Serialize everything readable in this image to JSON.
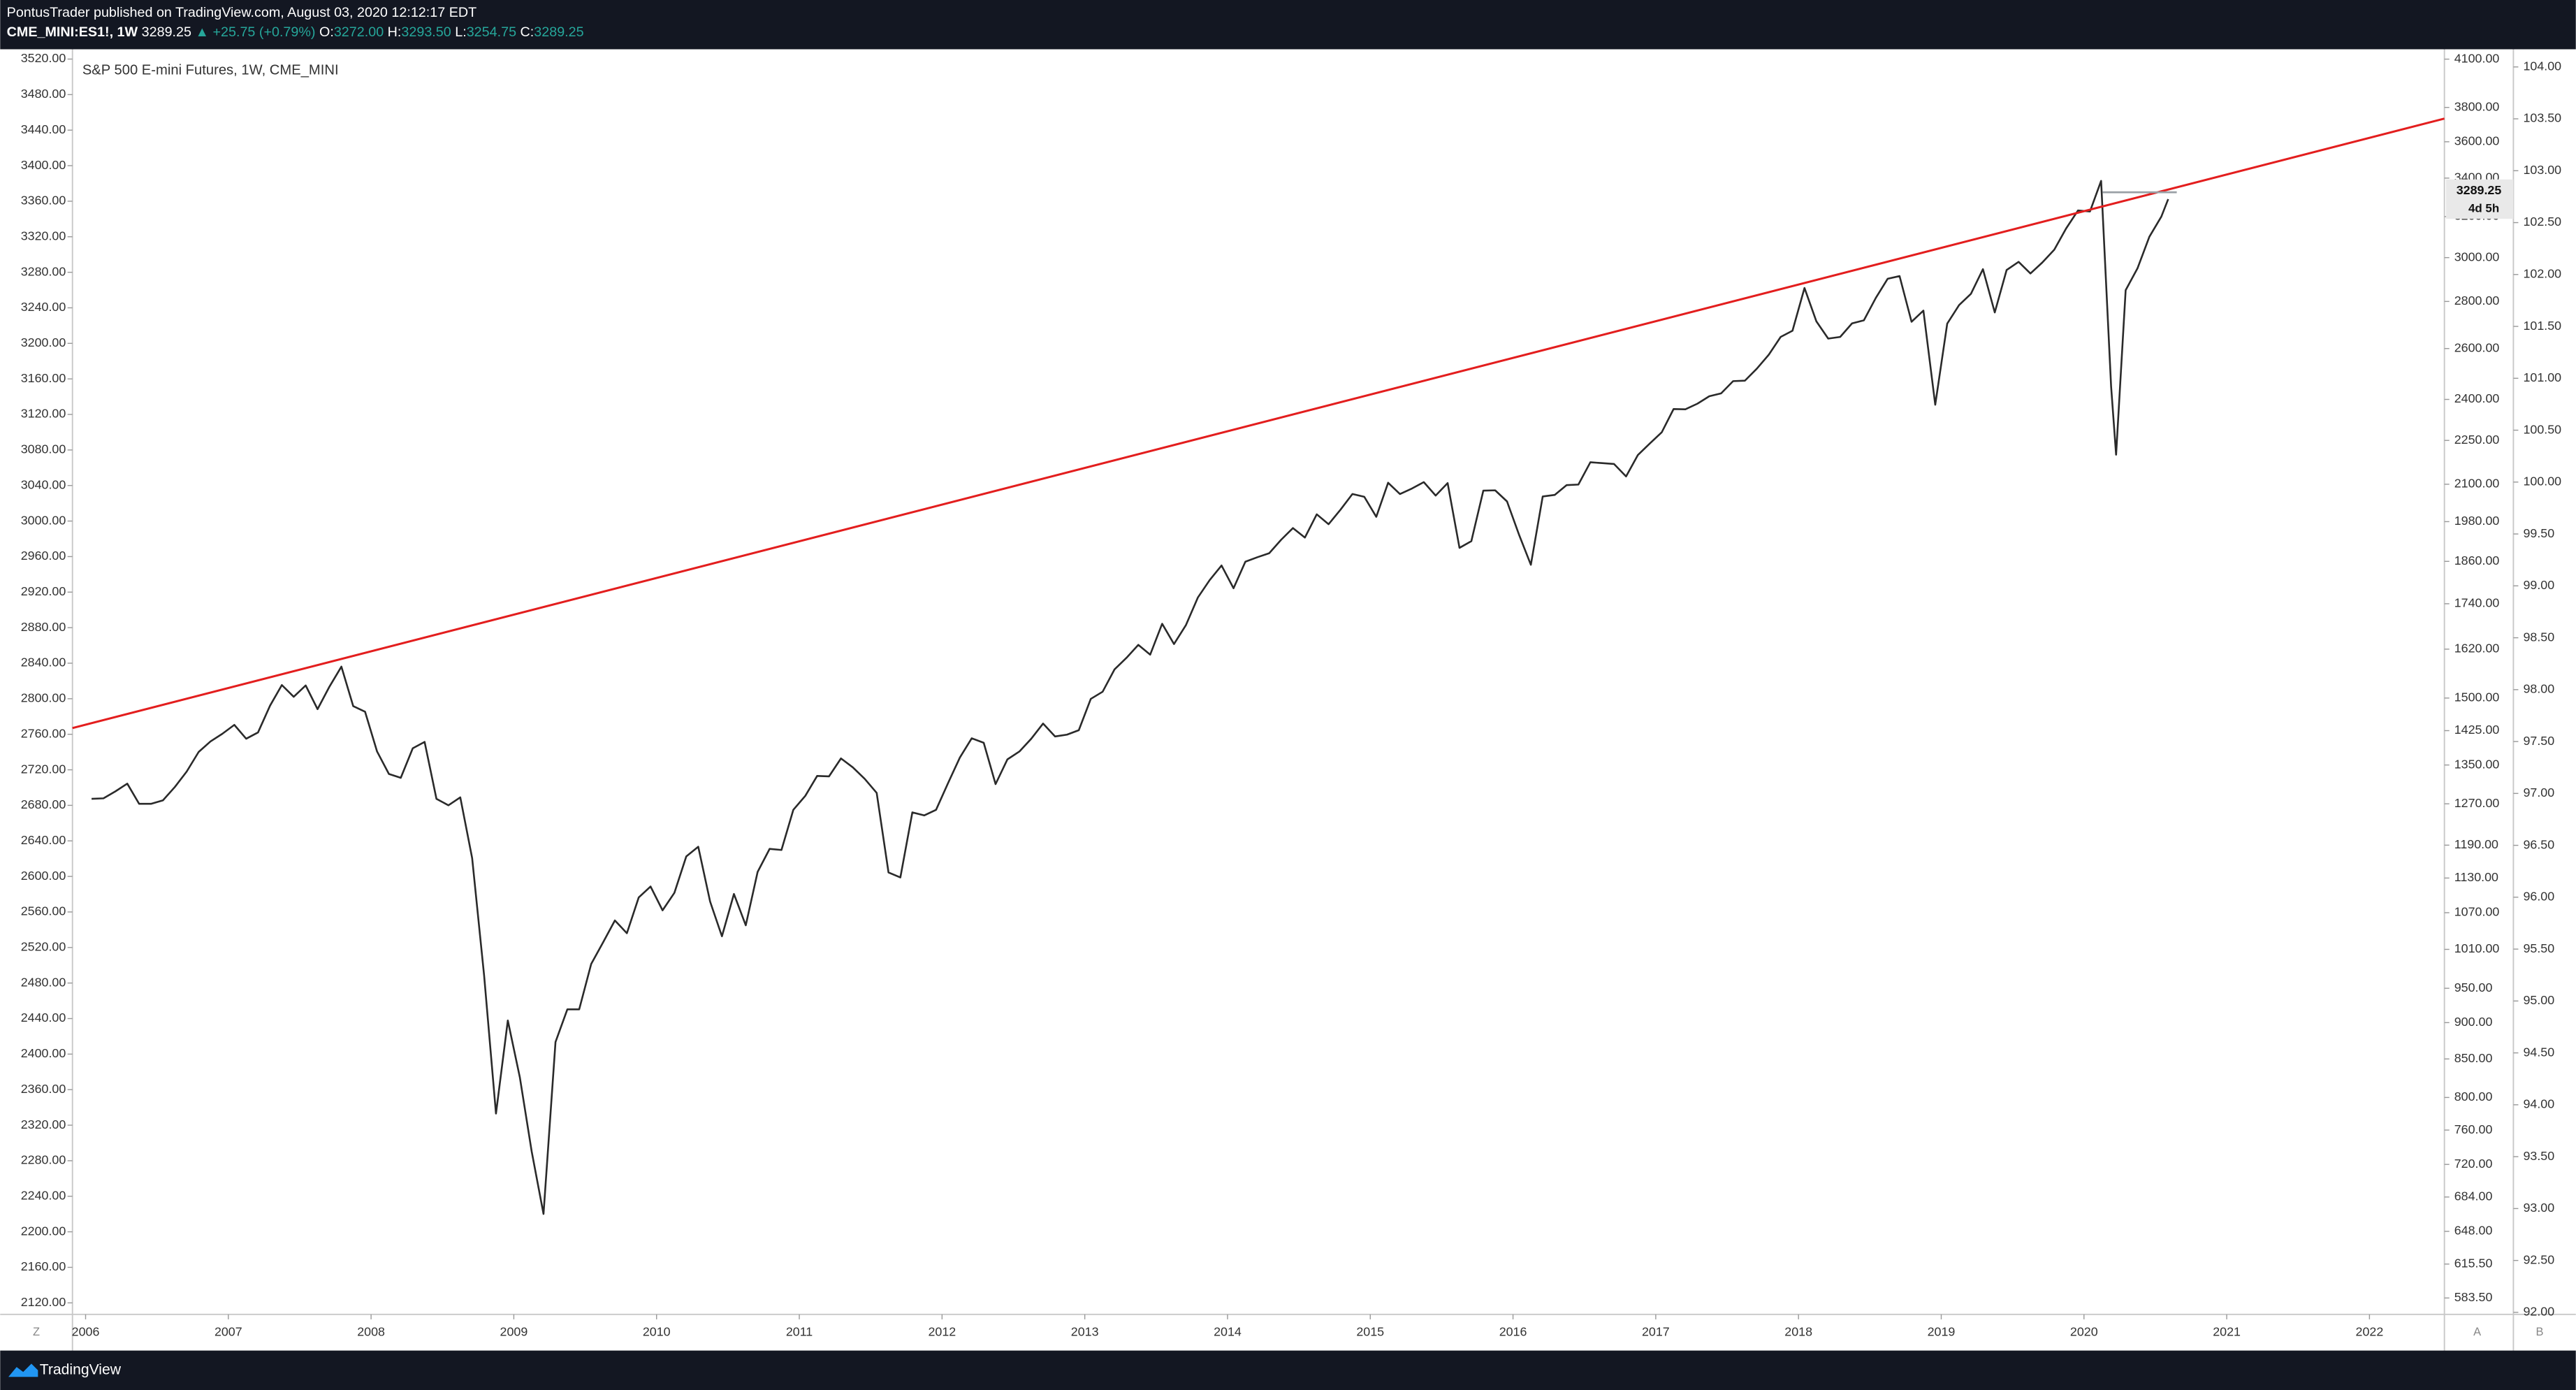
{
  "header": {
    "line1": "PontusTrader published on TradingView.com, August 03, 2020 12:12:17 EDT",
    "symbol": "CME_MINI:ES1!, 1W",
    "price": "3289.25",
    "change": "▲ +25.75 (+0.79%)",
    "o_label": "O:",
    "o": "3272.00",
    "h_label": "H:",
    "h": "3293.50",
    "l_label": "L:",
    "l": "3254.75",
    "c_label": "C:",
    "c": "3289.25"
  },
  "footer": {
    "brand": "TradingView"
  },
  "controls": {
    "left": "Z",
    "auto": "A",
    "log": "B"
  },
  "chart_data": {
    "type": "line",
    "title": "S&P 500 E-mini Futures, 1W, CME_MINI",
    "xlim": [
      2005.908,
      2022.525
    ],
    "xticks": [
      2006,
      2007,
      2008,
      2009,
      2010,
      2011,
      2012,
      2013,
      2014,
      2015,
      2016,
      2017,
      2018,
      2019,
      2020,
      2021,
      2022
    ],
    "ylim": [
      2107,
      3531
    ],
    "yticks": [
      {
        "value": 3520,
        "label": "3520.00"
      },
      {
        "value": 3480,
        "label": "3480.00"
      },
      {
        "value": 3440,
        "label": "3440.00"
      },
      {
        "value": 3400,
        "label": "3400.00"
      },
      {
        "value": 3360,
        "label": "3360.00"
      },
      {
        "value": 3320,
        "label": "3320.00"
      },
      {
        "value": 3280,
        "label": "3280.00"
      },
      {
        "value": 3240,
        "label": "3240.00"
      },
      {
        "value": 3200,
        "label": "3200.00"
      },
      {
        "value": 3160,
        "label": "3160.00"
      },
      {
        "value": 3120,
        "label": "3120.00"
      },
      {
        "value": 3080,
        "label": "3080.00"
      },
      {
        "value": 3040,
        "label": "3040.00"
      },
      {
        "value": 3000,
        "label": "3000.00"
      },
      {
        "value": 2960,
        "label": "2960.00"
      },
      {
        "value": 2920,
        "label": "2920.00"
      },
      {
        "value": 2880,
        "label": "2880.00"
      },
      {
        "value": 2840,
        "label": "2840.00"
      },
      {
        "value": 2800,
        "label": "2800.00"
      },
      {
        "value": 2760,
        "label": "2760.00"
      },
      {
        "value": 2720,
        "label": "2720.00"
      },
      {
        "value": 2680,
        "label": "2680.00"
      },
      {
        "value": 2640,
        "label": "2640.00"
      },
      {
        "value": 2600,
        "label": "2600.00"
      },
      {
        "value": 2560,
        "label": "2560.00"
      },
      {
        "value": 2520,
        "label": "2520.00"
      },
      {
        "value": 2480,
        "label": "2480.00"
      },
      {
        "value": 2440,
        "label": "2440.00"
      },
      {
        "value": 2400,
        "label": "2400.00"
      },
      {
        "value": 2360,
        "label": "2360.00"
      },
      {
        "value": 2320,
        "label": "2320.00"
      },
      {
        "value": 2280,
        "label": "2280.00"
      },
      {
        "value": 2240,
        "label": "2240.00"
      },
      {
        "value": 2200,
        "label": "2200.00"
      },
      {
        "value": 2160,
        "label": "2160.00"
      },
      {
        "value": 2120,
        "label": "2120.00"
      }
    ],
    "y2lim": [
      568.6,
      4164
    ],
    "y2log": true,
    "y2ticks": [
      {
        "value": 4100,
        "label": "4100.00"
      },
      {
        "value": 3800,
        "label": "3800.00"
      },
      {
        "value": 3600,
        "label": "3600.00"
      },
      {
        "value": 3400,
        "label": "3400.00"
      },
      {
        "value": 3200,
        "label": "3200.00"
      },
      {
        "value": 3000,
        "label": "3000.00"
      },
      {
        "value": 2800,
        "label": "2800.00"
      },
      {
        "value": 2600,
        "label": "2600.00"
      },
      {
        "value": 2400,
        "label": "2400.00"
      },
      {
        "value": 2250,
        "label": "2250.00"
      },
      {
        "value": 2100,
        "label": "2100.00"
      },
      {
        "value": 1980,
        "label": "1980.00"
      },
      {
        "value": 1860,
        "label": "1860.00"
      },
      {
        "value": 1740,
        "label": "1740.00"
      },
      {
        "value": 1620,
        "label": "1620.00"
      },
      {
        "value": 1500,
        "label": "1500.00"
      },
      {
        "value": 1425,
        "label": "1425.00"
      },
      {
        "value": 1350,
        "label": "1350.00"
      },
      {
        "value": 1270,
        "label": "1270.00"
      },
      {
        "value": 1190,
        "label": "1190.00"
      },
      {
        "value": 1130,
        "label": "1130.00"
      },
      {
        "value": 1070,
        "label": "1070.00"
      },
      {
        "value": 1010,
        "label": "1010.00"
      },
      {
        "value": 950,
        "label": "950.00"
      },
      {
        "value": 900,
        "label": "900.00"
      },
      {
        "value": 850,
        "label": "850.00"
      },
      {
        "value": 800,
        "label": "800.00"
      },
      {
        "value": 760,
        "label": "760.00"
      },
      {
        "value": 720,
        "label": "720.00"
      },
      {
        "value": 684,
        "label": "684.00"
      },
      {
        "value": 648,
        "label": "648.00"
      },
      {
        "value": 615.5,
        "label": "615.50"
      },
      {
        "value": 583.5,
        "label": "583.50"
      }
    ],
    "y3lim": [
      91.98,
      104.17
    ],
    "y3ticks": [
      {
        "value": 104,
        "label": "104.00"
      },
      {
        "value": 103.5,
        "label": "103.50"
      },
      {
        "value": 103,
        "label": "103.00"
      },
      {
        "value": 102.5,
        "label": "102.50"
      },
      {
        "value": 102,
        "label": "102.00"
      },
      {
        "value": 101.5,
        "label": "101.50"
      },
      {
        "value": 101,
        "label": "101.00"
      },
      {
        "value": 100.5,
        "label": "100.50"
      },
      {
        "value": 100,
        "label": "100.00"
      },
      {
        "value": 99.5,
        "label": "99.50"
      },
      {
        "value": 99,
        "label": "99.00"
      },
      {
        "value": 98.5,
        "label": "98.50"
      },
      {
        "value": 98,
        "label": "98.00"
      },
      {
        "value": 97.5,
        "label": "97.50"
      },
      {
        "value": 97,
        "label": "97.00"
      },
      {
        "value": 96.5,
        "label": "96.50"
      },
      {
        "value": 96,
        "label": "96.00"
      },
      {
        "value": 95.5,
        "label": "95.50"
      },
      {
        "value": 95,
        "label": "95.00"
      },
      {
        "value": 94.5,
        "label": "94.50"
      },
      {
        "value": 94,
        "label": "94.00"
      },
      {
        "value": 93.5,
        "label": "93.50"
      },
      {
        "value": 93,
        "label": "93.00"
      },
      {
        "value": 92.5,
        "label": "92.50"
      },
      {
        "value": 92,
        "label": "92.00"
      }
    ],
    "series": [
      {
        "axis": "y2",
        "color": "#2a2a2a",
        "x": [
          2006.042,
          2006.125,
          2006.208,
          2006.292,
          2006.375,
          2006.458,
          2006.542,
          2006.625,
          2006.708,
          2006.792,
          2006.875,
          2006.958,
          2007.042,
          2007.125,
          2007.208,
          2007.292,
          2007.375,
          2007.458,
          2007.542,
          2007.625,
          2007.708,
          2007.792,
          2007.875,
          2007.958,
          2008.042,
          2008.125,
          2008.208,
          2008.292,
          2008.375,
          2008.458,
          2008.542,
          2008.625,
          2008.708,
          2008.792,
          2008.875,
          2008.958,
          2009.042,
          2009.125,
          2009.208,
          2009.292,
          2009.375,
          2009.458,
          2009.542,
          2009.625,
          2009.708,
          2009.792,
          2009.875,
          2009.958,
          2010.042,
          2010.125,
          2010.208,
          2010.292,
          2010.375,
          2010.458,
          2010.542,
          2010.625,
          2010.708,
          2010.792,
          2010.875,
          2010.958,
          2011.042,
          2011.125,
          2011.208,
          2011.292,
          2011.375,
          2011.458,
          2011.542,
          2011.625,
          2011.708,
          2011.792,
          2011.875,
          2011.958,
          2012.042,
          2012.125,
          2012.208,
          2012.292,
          2012.375,
          2012.458,
          2012.542,
          2012.625,
          2012.708,
          2012.792,
          2012.875,
          2012.958,
          2013.042,
          2013.125,
          2013.208,
          2013.292,
          2013.375,
          2013.458,
          2013.542,
          2013.625,
          2013.708,
          2013.792,
          2013.875,
          2013.958,
          2014.042,
          2014.125,
          2014.208,
          2014.292,
          2014.375,
          2014.458,
          2014.542,
          2014.625,
          2014.708,
          2014.792,
          2014.875,
          2014.958,
          2015.042,
          2015.125,
          2015.208,
          2015.292,
          2015.375,
          2015.458,
          2015.542,
          2015.625,
          2015.708,
          2015.792,
          2015.875,
          2015.958,
          2016.042,
          2016.125,
          2016.208,
          2016.292,
          2016.375,
          2016.458,
          2016.542,
          2016.625,
          2016.708,
          2016.792,
          2016.875,
          2016.958,
          2017.042,
          2017.125,
          2017.208,
          2017.292,
          2017.375,
          2017.458,
          2017.542,
          2017.625,
          2017.708,
          2017.792,
          2017.875,
          2017.958,
          2018.042,
          2018.125,
          2018.208,
          2018.292,
          2018.375,
          2018.458,
          2018.542,
          2018.625,
          2018.708,
          2018.792,
          2018.875,
          2018.958,
          2019.042,
          2019.125,
          2019.208,
          2019.292,
          2019.375,
          2019.458,
          2019.542,
          2019.625,
          2019.708,
          2019.792,
          2019.875,
          2019.958,
          2020.042,
          2020.12,
          2020.19,
          2020.225,
          2020.292,
          2020.375,
          2020.458,
          2020.542,
          2020.59
        ],
        "values": [
          1280,
          1281,
          1295,
          1311,
          1270,
          1270,
          1277,
          1304,
          1336,
          1378,
          1401,
          1418,
          1438,
          1407,
          1421,
          1482,
          1531,
          1503,
          1530,
          1474,
          1527,
          1576,
          1481,
          1468,
          1379,
          1331,
          1323,
          1386,
          1400,
          1280,
          1267,
          1283,
          1166,
          969,
          780,
          903,
          826,
          735,
          666,
          873,
          919,
          919,
          987,
          1021,
          1057,
          1036,
          1096,
          1115,
          1074,
          1104,
          1169,
          1187,
          1089,
          1031,
          1102,
          1049,
          1141,
          1183,
          1181,
          1258,
          1286,
          1327,
          1326,
          1364,
          1345,
          1321,
          1292,
          1140,
          1131,
          1253,
          1247,
          1258,
          1312,
          1366,
          1408,
          1398,
          1310,
          1362,
          1379,
          1407,
          1441,
          1412,
          1416,
          1426,
          1498,
          1515,
          1569,
          1598,
          1631,
          1606,
          1686,
          1633,
          1682,
          1757,
          1806,
          1848,
          1783,
          1859,
          1872,
          1884,
          1924,
          1960,
          1931,
          2003,
          1972,
          2018,
          2068,
          2059,
          1995,
          2105,
          2068,
          2086,
          2107,
          2063,
          2104,
          1900,
          1920,
          2079,
          2080,
          2044,
          1940,
          1850,
          2060,
          2065,
          2097,
          2099,
          2174,
          2171,
          2168,
          2126,
          2199,
          2239,
          2279,
          2364,
          2363,
          2384,
          2412,
          2423,
          2470,
          2472,
          2519,
          2575,
          2648,
          2674,
          2860,
          2714,
          2641,
          2648,
          2705,
          2718,
          2816,
          2902,
          2914,
          2712,
          2760,
          2380,
          2704,
          2784,
          2834,
          2946,
          2752,
          2942,
          2980,
          2926,
          2977,
          3038,
          3141,
          3231,
          3226,
          3385,
          2450,
          2200,
          2850,
          2950,
          3100,
          3200,
          3289.25
        ]
      }
    ],
    "trendline": {
      "color": "#e31e1e",
      "x": [
        2005.908,
        2022.525
      ],
      "values": [
        2767,
        3453
      ]
    },
    "level": {
      "color": "#9aa0a6",
      "x": [
        2020.13,
        2020.65
      ],
      "value": 3325
    },
    "last_price": {
      "value": 3289.25,
      "label": "3289.25",
      "countdown": "4d 5h"
    }
  }
}
